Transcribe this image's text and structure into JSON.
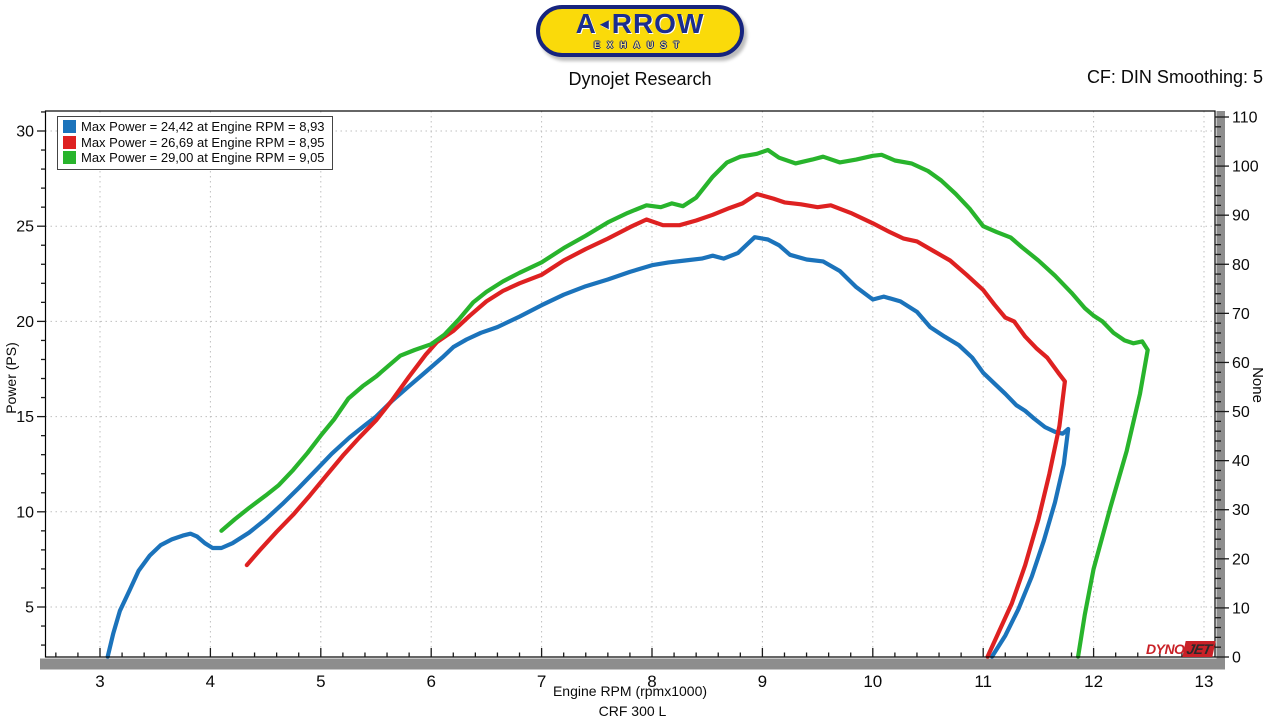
{
  "header": {
    "logo": {
      "brand_first": "A",
      "arrow_glyph": "◄",
      "brand_rest": "RROW",
      "subtitle": "EXHAUST"
    },
    "title": "Dynojet Research",
    "cf_label": "CF: DIN Smoothing: 5"
  },
  "legend": {
    "entries": [
      {
        "label": "Max Power = 24,42 at Engine RPM = 8,93",
        "color": "#1b73bb"
      },
      {
        "label": "Max Power = 26,69 at Engine RPM = 8,95",
        "color": "#de2121"
      },
      {
        "label": "Max Power = 29,00 at Engine RPM = 9,05",
        "color": "#28b42c"
      }
    ]
  },
  "watermark": {
    "part1": "DYNO",
    "part2": "JET"
  },
  "chart_data": {
    "type": "line",
    "title": "Dynojet Research",
    "xlabel": "Engine RPM (rpmx1000)",
    "ylabel_left": "Power (PS)",
    "ylabel_right": "None",
    "footer": "CRF 300 L",
    "x_range": [
      2.5,
      13.05
    ],
    "y_left_range": [
      2.5,
      31.2
    ],
    "y_right_range": [
      0,
      110
    ],
    "x_ticks_major": [
      3,
      4,
      5,
      6,
      7,
      8,
      9,
      10,
      11,
      12,
      13
    ],
    "x_tick_minor_step": 0.2,
    "y_left_ticks_major": [
      5,
      10,
      15,
      20,
      25,
      30
    ],
    "y_left_tick_minor_step": 1,
    "y_right_ticks_major": [
      0,
      10,
      20,
      30,
      40,
      50,
      60,
      70,
      80,
      90,
      100,
      110
    ],
    "y_right_tick_minor_step": 2,
    "grid": true,
    "legend_position": "top-left",
    "series": [
      {
        "legend": "Max Power = 24,42 at Engine RPM = 8,93",
        "color": "#1b73bb",
        "max_power_ps": 24.42,
        "max_power_rpm_x1000": 8.93,
        "points": [
          [
            3.07,
            2.3
          ],
          [
            3.12,
            3.6
          ],
          [
            3.18,
            4.8
          ],
          [
            3.27,
            5.9
          ],
          [
            3.35,
            6.9
          ],
          [
            3.45,
            7.7
          ],
          [
            3.55,
            8.25
          ],
          [
            3.65,
            8.55
          ],
          [
            3.75,
            8.75
          ],
          [
            3.82,
            8.85
          ],
          [
            3.88,
            8.7
          ],
          [
            3.95,
            8.35
          ],
          [
            4.02,
            8.1
          ],
          [
            4.1,
            8.1
          ],
          [
            4.2,
            8.35
          ],
          [
            4.35,
            8.9
          ],
          [
            4.5,
            9.6
          ],
          [
            4.65,
            10.4
          ],
          [
            4.8,
            11.25
          ],
          [
            4.95,
            12.15
          ],
          [
            5.1,
            13.05
          ],
          [
            5.26,
            13.9
          ],
          [
            5.4,
            14.55
          ],
          [
            5.5,
            15.0
          ],
          [
            5.65,
            15.85
          ],
          [
            5.8,
            16.6
          ],
          [
            5.95,
            17.35
          ],
          [
            6.1,
            18.1
          ],
          [
            6.2,
            18.65
          ],
          [
            6.32,
            19.05
          ],
          [
            6.45,
            19.4
          ],
          [
            6.6,
            19.7
          ],
          [
            6.8,
            20.25
          ],
          [
            7.0,
            20.85
          ],
          [
            7.2,
            21.4
          ],
          [
            7.4,
            21.85
          ],
          [
            7.6,
            22.2
          ],
          [
            7.8,
            22.6
          ],
          [
            8.0,
            22.95
          ],
          [
            8.15,
            23.1
          ],
          [
            8.3,
            23.2
          ],
          [
            8.45,
            23.3
          ],
          [
            8.55,
            23.45
          ],
          [
            8.65,
            23.3
          ],
          [
            8.78,
            23.6
          ],
          [
            8.93,
            24.42
          ],
          [
            9.05,
            24.3
          ],
          [
            9.15,
            24.0
          ],
          [
            9.25,
            23.5
          ],
          [
            9.4,
            23.25
          ],
          [
            9.55,
            23.15
          ],
          [
            9.7,
            22.65
          ],
          [
            9.85,
            21.8
          ],
          [
            10.0,
            21.15
          ],
          [
            10.1,
            21.3
          ],
          [
            10.25,
            21.05
          ],
          [
            10.4,
            20.5
          ],
          [
            10.52,
            19.7
          ],
          [
            10.65,
            19.2
          ],
          [
            10.78,
            18.75
          ],
          [
            10.9,
            18.1
          ],
          [
            11.0,
            17.3
          ],
          [
            11.1,
            16.75
          ],
          [
            11.2,
            16.2
          ],
          [
            11.3,
            15.6
          ],
          [
            11.38,
            15.3
          ],
          [
            11.46,
            14.9
          ],
          [
            11.56,
            14.45
          ],
          [
            11.65,
            14.2
          ],
          [
            11.72,
            14.1
          ],
          [
            11.77,
            14.35
          ],
          [
            11.73,
            12.5
          ],
          [
            11.65,
            10.5
          ],
          [
            11.55,
            8.5
          ],
          [
            11.44,
            6.6
          ],
          [
            11.32,
            4.9
          ],
          [
            11.2,
            3.5
          ],
          [
            11.08,
            2.3
          ]
        ]
      },
      {
        "legend": "Max Power = 26,69 at Engine RPM = 8,95",
        "color": "#de2121",
        "max_power_ps": 26.69,
        "max_power_rpm_x1000": 8.95,
        "points": [
          [
            4.33,
            7.2
          ],
          [
            4.45,
            8.0
          ],
          [
            4.6,
            8.95
          ],
          [
            4.75,
            9.85
          ],
          [
            4.9,
            10.85
          ],
          [
            5.05,
            11.9
          ],
          [
            5.2,
            12.95
          ],
          [
            5.35,
            13.9
          ],
          [
            5.5,
            14.8
          ],
          [
            5.65,
            15.9
          ],
          [
            5.8,
            17.1
          ],
          [
            5.95,
            18.25
          ],
          [
            6.05,
            18.9
          ],
          [
            6.2,
            19.5
          ],
          [
            6.35,
            20.3
          ],
          [
            6.5,
            21.05
          ],
          [
            6.65,
            21.6
          ],
          [
            6.8,
            22.0
          ],
          [
            7.0,
            22.45
          ],
          [
            7.2,
            23.2
          ],
          [
            7.4,
            23.8
          ],
          [
            7.6,
            24.35
          ],
          [
            7.8,
            24.95
          ],
          [
            7.95,
            25.35
          ],
          [
            8.1,
            25.05
          ],
          [
            8.25,
            25.05
          ],
          [
            8.4,
            25.3
          ],
          [
            8.55,
            25.6
          ],
          [
            8.7,
            25.95
          ],
          [
            8.82,
            26.2
          ],
          [
            8.95,
            26.69
          ],
          [
            9.1,
            26.45
          ],
          [
            9.2,
            26.25
          ],
          [
            9.35,
            26.15
          ],
          [
            9.5,
            26.0
          ],
          [
            9.62,
            26.1
          ],
          [
            9.8,
            25.7
          ],
          [
            10.0,
            25.15
          ],
          [
            10.15,
            24.7
          ],
          [
            10.28,
            24.35
          ],
          [
            10.4,
            24.2
          ],
          [
            10.55,
            23.7
          ],
          [
            10.7,
            23.2
          ],
          [
            10.85,
            22.45
          ],
          [
            11.0,
            21.65
          ],
          [
            11.1,
            20.9
          ],
          [
            11.2,
            20.2
          ],
          [
            11.28,
            20.0
          ],
          [
            11.38,
            19.2
          ],
          [
            11.48,
            18.6
          ],
          [
            11.58,
            18.1
          ],
          [
            11.68,
            17.3
          ],
          [
            11.74,
            16.85
          ],
          [
            11.69,
            14.5
          ],
          [
            11.6,
            12.0
          ],
          [
            11.5,
            9.6
          ],
          [
            11.38,
            7.2
          ],
          [
            11.26,
            5.2
          ],
          [
            11.15,
            3.8
          ],
          [
            11.04,
            2.3
          ]
        ]
      },
      {
        "legend": "Max Power = 29,00 at Engine RPM = 9,05",
        "color": "#28b42c",
        "max_power_ps": 29.0,
        "max_power_rpm_x1000": 9.05,
        "points": [
          [
            4.1,
            9.0
          ],
          [
            4.22,
            9.6
          ],
          [
            4.35,
            10.2
          ],
          [
            4.5,
            10.85
          ],
          [
            4.62,
            11.4
          ],
          [
            4.75,
            12.2
          ],
          [
            4.88,
            13.1
          ],
          [
            5.0,
            14.0
          ],
          [
            5.12,
            14.85
          ],
          [
            5.25,
            15.95
          ],
          [
            5.38,
            16.6
          ],
          [
            5.5,
            17.1
          ],
          [
            5.62,
            17.7
          ],
          [
            5.72,
            18.2
          ],
          [
            5.85,
            18.5
          ],
          [
            6.0,
            18.8
          ],
          [
            6.12,
            19.3
          ],
          [
            6.25,
            20.1
          ],
          [
            6.38,
            21.0
          ],
          [
            6.5,
            21.55
          ],
          [
            6.65,
            22.1
          ],
          [
            6.8,
            22.55
          ],
          [
            7.0,
            23.1
          ],
          [
            7.2,
            23.85
          ],
          [
            7.4,
            24.5
          ],
          [
            7.6,
            25.2
          ],
          [
            7.78,
            25.7
          ],
          [
            7.95,
            26.1
          ],
          [
            8.08,
            26.0
          ],
          [
            8.18,
            26.2
          ],
          [
            8.28,
            26.05
          ],
          [
            8.4,
            26.5
          ],
          [
            8.55,
            27.6
          ],
          [
            8.68,
            28.35
          ],
          [
            8.8,
            28.65
          ],
          [
            8.95,
            28.8
          ],
          [
            9.05,
            29.0
          ],
          [
            9.15,
            28.6
          ],
          [
            9.3,
            28.3
          ],
          [
            9.45,
            28.5
          ],
          [
            9.55,
            28.65
          ],
          [
            9.7,
            28.35
          ],
          [
            9.85,
            28.5
          ],
          [
            10.0,
            28.7
          ],
          [
            10.08,
            28.75
          ],
          [
            10.2,
            28.45
          ],
          [
            10.35,
            28.3
          ],
          [
            10.5,
            27.9
          ],
          [
            10.62,
            27.4
          ],
          [
            10.75,
            26.7
          ],
          [
            10.88,
            25.9
          ],
          [
            11.0,
            25.0
          ],
          [
            11.12,
            24.7
          ],
          [
            11.25,
            24.4
          ],
          [
            11.35,
            23.9
          ],
          [
            11.5,
            23.2
          ],
          [
            11.65,
            22.4
          ],
          [
            11.8,
            21.5
          ],
          [
            11.92,
            20.7
          ],
          [
            12.0,
            20.3
          ],
          [
            12.08,
            20.0
          ],
          [
            12.18,
            19.4
          ],
          [
            12.28,
            19.0
          ],
          [
            12.36,
            18.85
          ],
          [
            12.44,
            18.95
          ],
          [
            12.49,
            18.5
          ],
          [
            12.42,
            16.2
          ],
          [
            12.3,
            13.2
          ],
          [
            12.15,
            10.2
          ],
          [
            12.0,
            7.0
          ],
          [
            11.92,
            4.6
          ],
          [
            11.86,
            2.3
          ]
        ]
      }
    ]
  }
}
